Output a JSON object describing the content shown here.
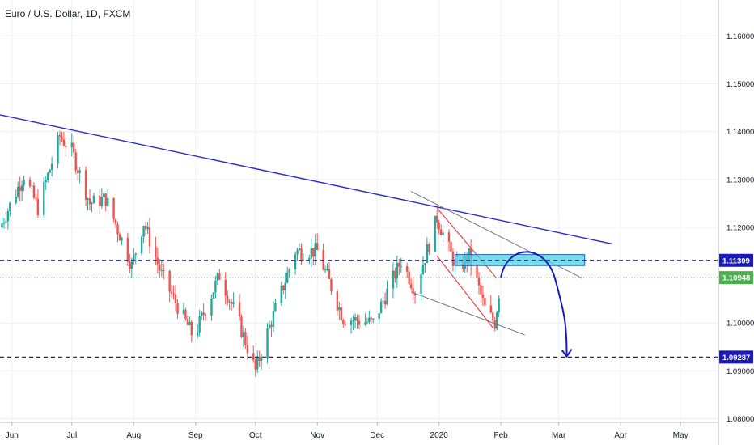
{
  "header": {
    "title": "Euro / U.S. Dollar, 1D, FXCM"
  },
  "colors": {
    "up": "#26a69a",
    "down": "#ef5350",
    "trendline": "#2a2acb",
    "level_line": "#1a1ab8",
    "current_line": "#4caf50",
    "zone_fill": "#4dd0e1",
    "zone_stroke": "#1565c0",
    "channel_red": "#e53935",
    "channel_gray": "#787b86",
    "grid": "#eef0f3",
    "axis_text": "#131722"
  },
  "chart_data": {
    "type": "candlestick",
    "title": "Euro / U.S. Dollar, 1D, FXCM",
    "x_axis": {
      "type": "date",
      "range": [
        "2019-05-26",
        "2020-05-20"
      ],
      "tick_labels": [
        "Jun",
        "Jul",
        "Aug",
        "Sep",
        "Oct",
        "Nov",
        "Dec",
        "2020",
        "Feb",
        "Mar",
        "Apr",
        "May"
      ],
      "tick_dates": [
        "2019-06-01",
        "2019-07-01",
        "2019-08-01",
        "2019-09-01",
        "2019-10-01",
        "2019-11-01",
        "2019-12-01",
        "2020-01-01",
        "2020-02-01",
        "2020-03-01",
        "2020-04-01",
        "2020-05-01"
      ]
    },
    "y_axis": {
      "range": [
        1.0745,
        1.1675
      ],
      "tick_labels": [
        "1.16000",
        "1.15000",
        "1.14000",
        "1.13000",
        "1.12000",
        "1.11000",
        "1.10000",
        "1.09000",
        "1.08000"
      ],
      "tick_values": [
        1.16,
        1.15,
        1.14,
        1.13,
        1.12,
        1.11,
        1.1,
        1.09,
        1.08
      ]
    },
    "grid": true,
    "price_anchors": [
      [
        "2019-05-26",
        1.12
      ],
      [
        "2019-06-07",
        1.131
      ],
      [
        "2019-06-14",
        1.124
      ],
      [
        "2019-06-25",
        1.139
      ],
      [
        "2019-07-01",
        1.136
      ],
      [
        "2019-07-10",
        1.125
      ],
      [
        "2019-07-18",
        1.126
      ],
      [
        "2019-07-31",
        1.112
      ],
      [
        "2019-08-06",
        1.121
      ],
      [
        "2019-08-15",
        1.11
      ],
      [
        "2019-08-31",
        1.097
      ],
      [
        "2019-09-13",
        1.11
      ],
      [
        "2019-09-22",
        1.101
      ],
      [
        "2019-10-01",
        1.09
      ],
      [
        "2019-10-07",
        1.098
      ],
      [
        "2019-10-21",
        1.115
      ],
      [
        "2019-11-01",
        1.115
      ],
      [
        "2019-11-14",
        1.101
      ],
      [
        "2019-11-29",
        1.1
      ],
      [
        "2019-12-13",
        1.113
      ],
      [
        "2019-12-20",
        1.107
      ],
      [
        "2019-12-31",
        1.122
      ],
      [
        "2020-01-10",
        1.111
      ],
      [
        "2020-01-16",
        1.114
      ],
      [
        "2020-01-24",
        1.103
      ],
      [
        "2020-01-29",
        1.1
      ],
      [
        "2020-02-01",
        1.1095
      ]
    ],
    "levels": [
      {
        "value": 1.11309,
        "label": "1.11309",
        "style": "dashed"
      },
      {
        "value": 1.10948,
        "label": "1.10948",
        "style": "dotted"
      },
      {
        "value": 1.09287,
        "label": "1.09287",
        "style": "dashed"
      }
    ],
    "trendline": [
      [
        "2019-05-26",
        1.1435
      ],
      [
        "2020-03-28",
        1.1165
      ]
    ],
    "zone": {
      "x": [
        "2020-01-09",
        "2020-03-14"
      ],
      "y": [
        1.112,
        1.1143
      ]
    },
    "channel_red": [
      [
        [
          "2019-12-31",
          1.124
        ],
        [
          "2020-01-30",
          1.1093
        ]
      ],
      [
        [
          "2019-12-31",
          1.114
        ],
        [
          "2020-01-28",
          1.099
        ]
      ]
    ],
    "channel_gray": [
      [
        [
          "2019-12-18",
          1.1275
        ],
        [
          "2020-03-13",
          1.1093
        ]
      ],
      [
        [
          "2019-12-18",
          1.1065
        ],
        [
          "2020-02-13",
          1.0975
        ]
      ]
    ],
    "projection": {
      "start": [
        "2020-02-01",
        1.1095
      ],
      "peak": [
        "2020-02-16",
        1.1143
      ],
      "end": [
        "2020-03-05",
        1.093
      ]
    }
  }
}
